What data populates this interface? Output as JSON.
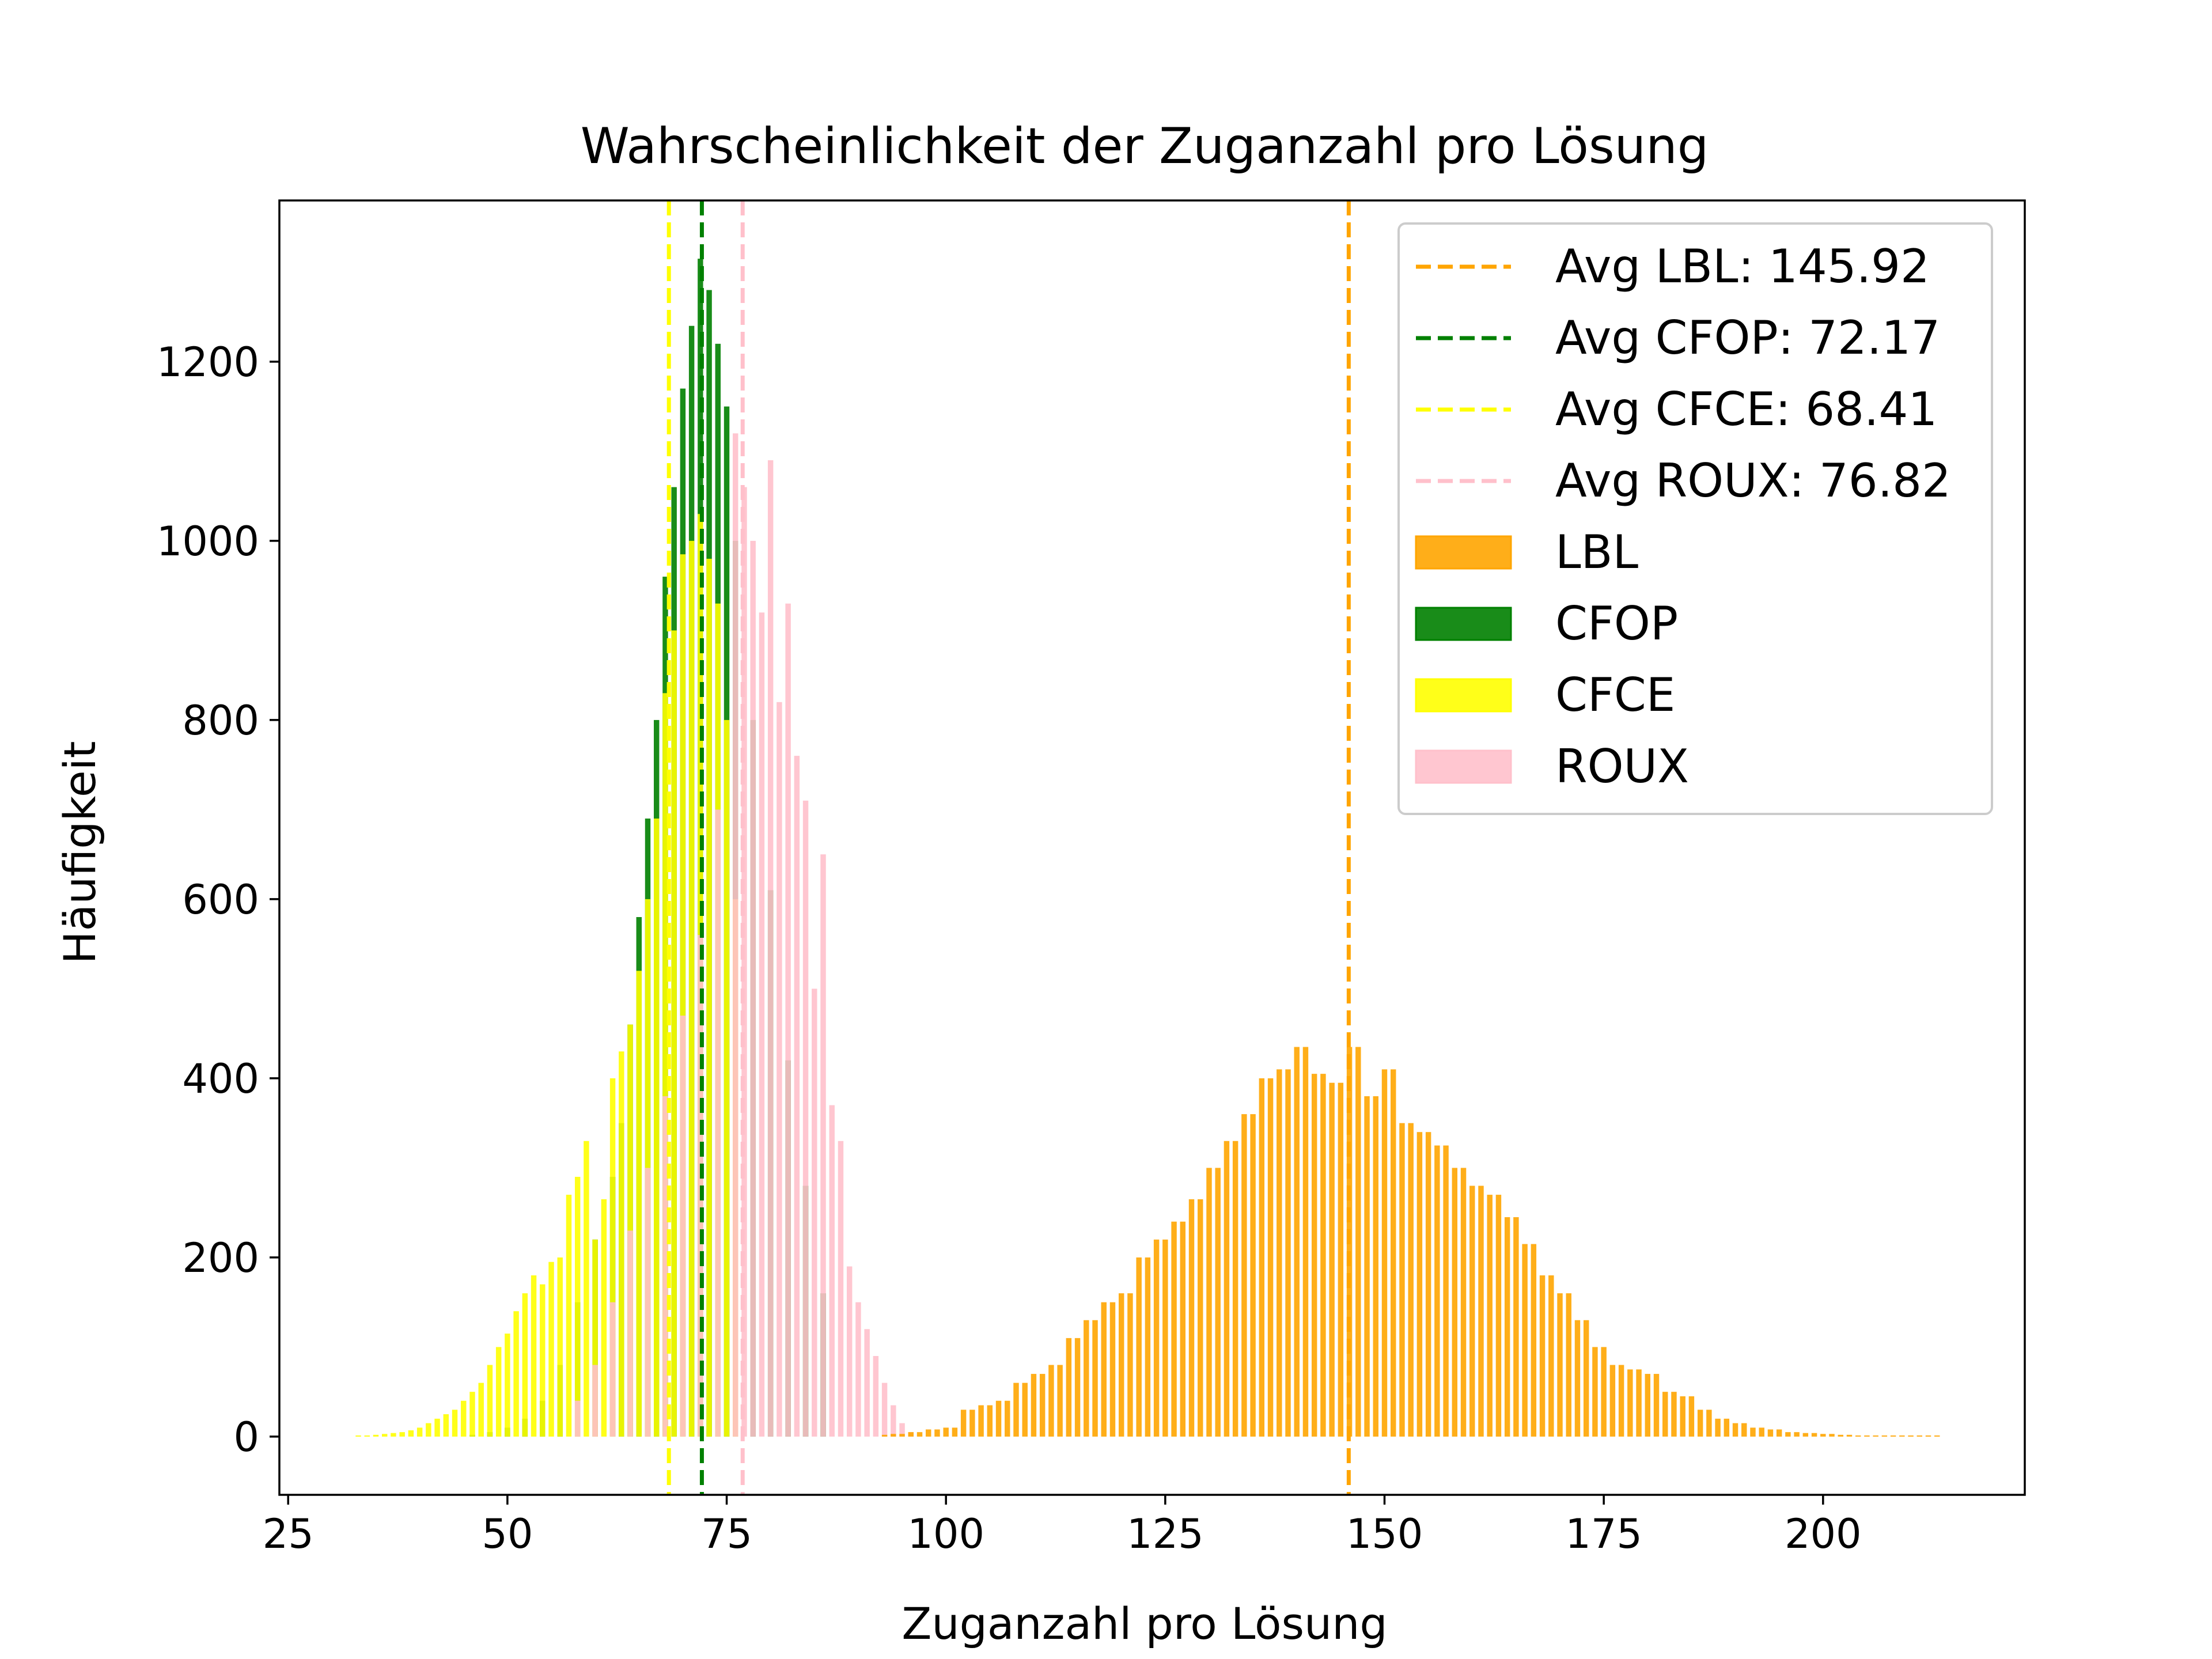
{
  "chart_data": {
    "type": "bar",
    "title": "Wahrscheinlichkeit der Zuganzahl pro Lösung",
    "xlabel": "Zuganzahl pro Lösung",
    "ylabel": "Häufigkeit",
    "xlim": [
      24,
      223
    ],
    "ylim": [
      -65,
      1380
    ],
    "xticks": [
      25,
      50,
      75,
      100,
      125,
      150,
      175,
      200
    ],
    "yticks": [
      0,
      200,
      400,
      600,
      800,
      1000,
      1200
    ],
    "grid": false,
    "legend_position": "top-right",
    "legend": [
      {
        "label": "Avg LBL: 145.92",
        "kind": "line",
        "color": "#FFA500"
      },
      {
        "label": "Avg CFOP: 72.17",
        "kind": "line",
        "color": "#008000"
      },
      {
        "label": "Avg CFCE: 68.41",
        "kind": "line",
        "color": "#FFFF00"
      },
      {
        "label": "Avg ROUX: 76.82",
        "kind": "line",
        "color": "#FFC0CB"
      },
      {
        "label": "LBL",
        "kind": "patch",
        "color": "#FFA500"
      },
      {
        "label": "CFOP",
        "kind": "patch",
        "color": "#008000"
      },
      {
        "label": "CFCE",
        "kind": "patch",
        "color": "#FFFF00"
      },
      {
        "label": "ROUX",
        "kind": "patch",
        "color": "#FFC0CB"
      }
    ],
    "averages": [
      {
        "name": "LBL",
        "value": 145.92,
        "color": "#FFA500"
      },
      {
        "name": "CFOP",
        "value": 72.17,
        "color": "#008000"
      },
      {
        "name": "CFCE",
        "value": 68.41,
        "color": "#FFFF00"
      },
      {
        "name": "ROUX",
        "value": 76.82,
        "color": "#FFC0CB"
      }
    ],
    "series": [
      {
        "name": "CFOP",
        "color": "#008000",
        "x": [
          46,
          48,
          50,
          52,
          54,
          56,
          58,
          60,
          62,
          63,
          64,
          65,
          66,
          67,
          68,
          69,
          70,
          71,
          72,
          73,
          74,
          75,
          76,
          78,
          80,
          82,
          84,
          86
        ],
        "values": [
          2,
          5,
          10,
          20,
          40,
          80,
          150,
          220,
          290,
          350,
          460,
          580,
          690,
          800,
          960,
          1060,
          1170,
          1240,
          1315,
          1280,
          1220,
          1150,
          1000,
          800,
          610,
          420,
          280,
          160
        ]
      },
      {
        "name": "CFCE",
        "color": "#FFFF00",
        "x": [
          33,
          34,
          35,
          36,
          37,
          38,
          39,
          40,
          41,
          42,
          43,
          44,
          45,
          46,
          47,
          48,
          49,
          50,
          51,
          52,
          53,
          54,
          55,
          56,
          57,
          58,
          59,
          60,
          61,
          62,
          63,
          64,
          65,
          66,
          67,
          68,
          69,
          70,
          71,
          72,
          73,
          74,
          75,
          76
        ],
        "values": [
          1,
          1,
          2,
          3,
          4,
          5,
          7,
          10,
          15,
          20,
          25,
          30,
          40,
          50,
          60,
          80,
          100,
          115,
          140,
          160,
          180,
          170,
          195,
          200,
          270,
          290,
          330,
          220,
          265,
          400,
          430,
          460,
          520,
          600,
          690,
          830,
          900,
          985,
          1000,
          1030,
          980,
          930,
          800,
          600
        ]
      },
      {
        "name": "ROUX",
        "color": "#FFC0CB",
        "x": [
          58,
          60,
          62,
          64,
          66,
          68,
          70,
          72,
          74,
          76,
          77,
          78,
          79,
          80,
          81,
          82,
          83,
          84,
          85,
          86,
          87,
          88,
          89,
          90,
          91,
          92,
          93,
          94,
          95,
          96
        ],
        "values": [
          40,
          80,
          150,
          230,
          300,
          380,
          470,
          560,
          700,
          1120,
          1060,
          1000,
          920,
          1090,
          820,
          930,
          760,
          710,
          500,
          650,
          370,
          330,
          190,
          150,
          120,
          90,
          60,
          35,
          15,
          5
        ]
      },
      {
        "name": "LBL",
        "color": "#FFA500",
        "x": [
          93,
          94,
          95,
          96,
          97,
          98,
          99,
          100,
          101,
          102,
          103,
          104,
          105,
          106,
          107,
          108,
          109,
          110,
          111,
          112,
          113,
          114,
          115,
          116,
          117,
          118,
          119,
          120,
          121,
          122,
          123,
          124,
          125,
          126,
          127,
          128,
          129,
          130,
          131,
          132,
          133,
          134,
          135,
          136,
          137,
          138,
          139,
          140,
          141,
          142,
          143,
          144,
          145,
          146,
          147,
          148,
          149,
          150,
          151,
          152,
          153,
          154,
          155,
          156,
          157,
          158,
          159,
          160,
          161,
          162,
          163,
          164,
          165,
          166,
          167,
          168,
          169,
          170,
          171,
          172,
          173,
          174,
          175,
          176,
          177,
          178,
          179,
          180,
          181,
          182,
          183,
          184,
          185,
          186,
          187,
          188,
          189,
          190,
          191,
          192,
          193,
          194,
          195,
          196,
          197,
          198,
          199,
          200,
          201,
          202,
          203,
          204,
          205,
          206,
          207,
          208,
          209,
          210,
          211,
          212,
          213
        ],
        "values": [
          2,
          3,
          3,
          5,
          5,
          8,
          8,
          10,
          10,
          30,
          30,
          35,
          35,
          40,
          40,
          60,
          60,
          70,
          70,
          80,
          80,
          110,
          110,
          130,
          130,
          150,
          150,
          160,
          160,
          200,
          200,
          220,
          220,
          240,
          240,
          265,
          265,
          300,
          300,
          330,
          330,
          360,
          360,
          400,
          400,
          410,
          410,
          435,
          435,
          405,
          405,
          395,
          395,
          435,
          435,
          380,
          380,
          410,
          410,
          350,
          350,
          340,
          340,
          325,
          325,
          300,
          300,
          280,
          280,
          270,
          270,
          245,
          245,
          215,
          215,
          180,
          180,
          160,
          160,
          130,
          130,
          100,
          100,
          80,
          80,
          75,
          75,
          70,
          70,
          50,
          50,
          45,
          45,
          30,
          30,
          20,
          20,
          15,
          15,
          10,
          10,
          8,
          8,
          5,
          5,
          4,
          4,
          3,
          3,
          2,
          2,
          1,
          1,
          1,
          1,
          1,
          1,
          1,
          1,
          1,
          1
        ]
      }
    ]
  }
}
